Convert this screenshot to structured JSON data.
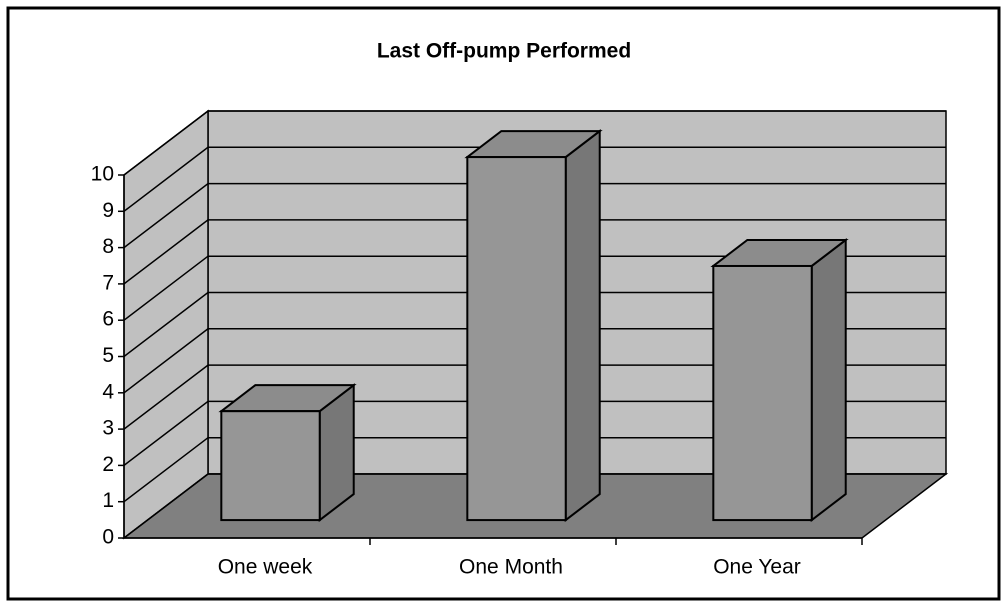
{
  "chart_data": {
    "type": "bar3d",
    "title": "Last Off-pump Performed",
    "categories": [
      "One week",
      "One Month",
      "One Year"
    ],
    "values": [
      3,
      10,
      7
    ],
    "color": "#969696",
    "ylim": [
      0,
      10
    ],
    "yticks": [
      0,
      1,
      2,
      3,
      4,
      5,
      6,
      7,
      8,
      9,
      10
    ],
    "grid": true
  }
}
